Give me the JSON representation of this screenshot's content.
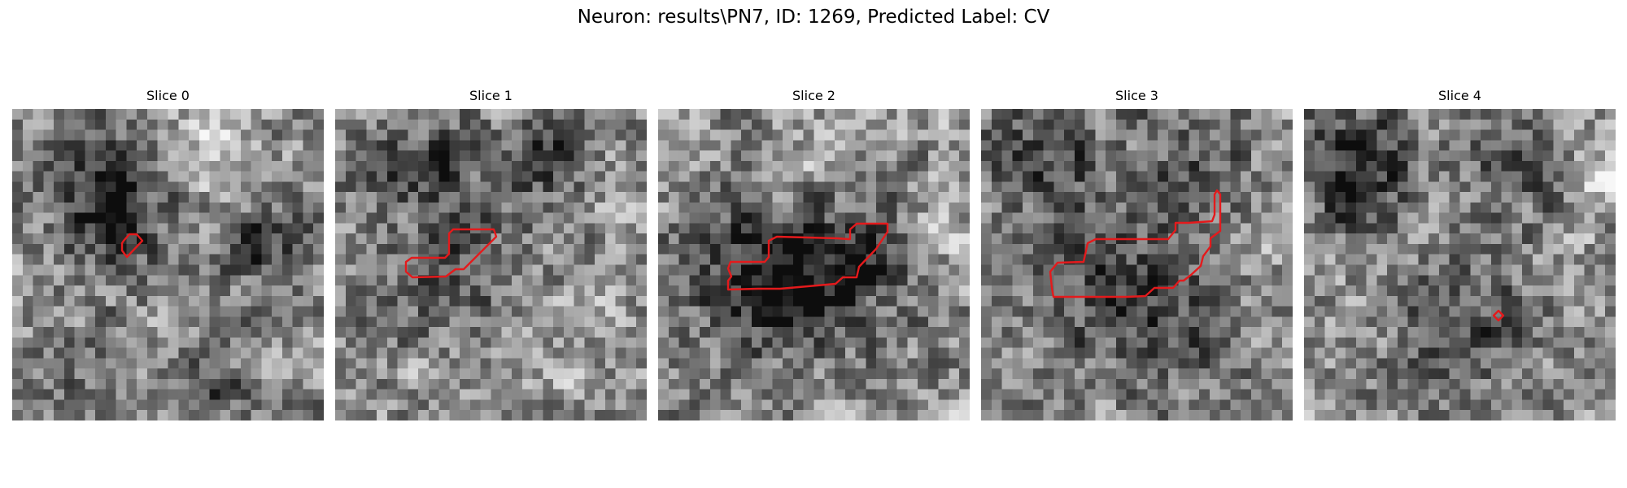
{
  "figure": {
    "title": "Neuron: results\\PN7, ID: 1269, Predicted Label: CV"
  },
  "slices": [
    {
      "title": "Slice 0"
    },
    {
      "title": "Slice 1"
    },
    {
      "title": "Slice 2"
    },
    {
      "title": "Slice 3"
    },
    {
      "title": "Slice 4"
    }
  ],
  "colors": {
    "contour": "#e41a1c",
    "colormap": "gray"
  }
}
